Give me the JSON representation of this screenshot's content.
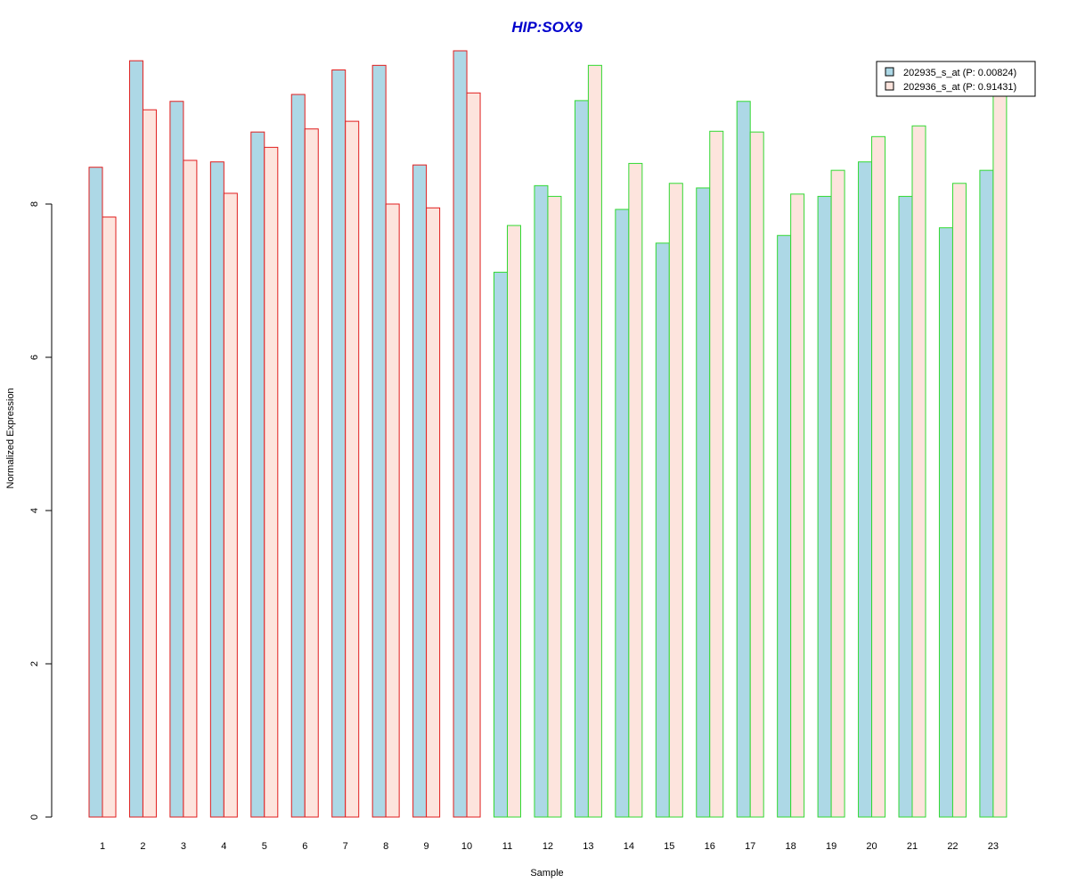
{
  "chart_data": {
    "type": "bar",
    "title": "HIP:SOX9",
    "xlabel": "Sample",
    "ylabel": "Normalized Expression",
    "ylim": [
      0,
      10
    ],
    "yticks": [
      "0",
      "2",
      "4",
      "6",
      "8"
    ],
    "categories": [
      "1",
      "2",
      "3",
      "4",
      "5",
      "6",
      "7",
      "8",
      "9",
      "10",
      "11",
      "12",
      "13",
      "14",
      "15",
      "16",
      "17",
      "18",
      "19",
      "20",
      "21",
      "22",
      "23"
    ],
    "series": [
      {
        "name": "202935_s_at (P: 0.00824)",
        "fill": "#add8e6",
        "values": [
          8.48,
          9.87,
          9.34,
          8.55,
          8.94,
          9.43,
          9.75,
          9.81,
          8.51,
          10.0,
          7.11,
          8.24,
          9.35,
          7.93,
          7.49,
          8.21,
          9.34,
          7.59,
          8.1,
          8.55,
          8.1,
          7.69,
          8.44
        ]
      },
      {
        "name": "202936_s_at (P: 0.91431)",
        "fill": "#fde4dd",
        "values": [
          7.83,
          9.23,
          8.57,
          8.14,
          8.74,
          8.98,
          9.08,
          8.0,
          7.95,
          9.45,
          7.72,
          8.1,
          9.81,
          8.53,
          8.27,
          8.95,
          8.94,
          8.13,
          8.44,
          8.88,
          9.02,
          8.27,
          9.43
        ]
      }
    ],
    "group_border_colors": [
      "#e01e1e",
      "#e01e1e",
      "#e01e1e",
      "#e01e1e",
      "#e01e1e",
      "#e01e1e",
      "#e01e1e",
      "#e01e1e",
      "#e01e1e",
      "#e01e1e",
      "#32d932",
      "#32d932",
      "#32d932",
      "#32d932",
      "#32d932",
      "#32d932",
      "#32d932",
      "#32d932",
      "#32d932",
      "#32d932",
      "#32d932",
      "#32d932",
      "#32d932"
    ],
    "title_color": "#0000cc",
    "legend_position": "top-right",
    "grid": false
  }
}
